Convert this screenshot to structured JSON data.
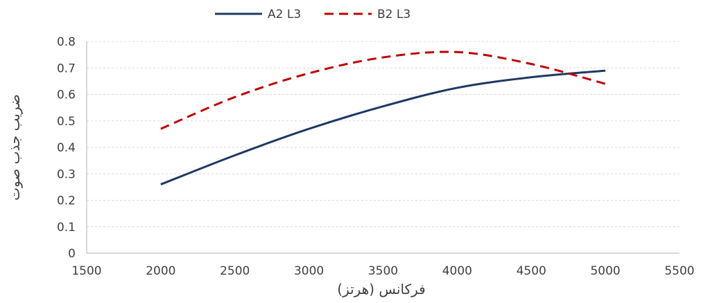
{
  "chart_data": {
    "type": "line",
    "title": "",
    "xlabel": "فرکانس (هرتز)",
    "ylabel": "ضریب جذب صوت",
    "xlim": [
      1500,
      5500
    ],
    "ylim": [
      0,
      0.8
    ],
    "xticks": [
      1500,
      2000,
      2500,
      3000,
      3500,
      4000,
      4500,
      5000,
      5500
    ],
    "yticks": [
      0,
      0.1,
      0.2,
      0.3,
      0.4,
      0.5,
      0.6,
      0.7,
      0.8
    ],
    "grid": true,
    "legend": "top",
    "series": [
      {
        "name": "A2 L3",
        "color": "#1f3864",
        "dash": "solid",
        "x": [
          2000,
          2500,
          3000,
          3500,
          4000,
          4500,
          5000
        ],
        "y": [
          0.26,
          0.37,
          0.47,
          0.555,
          0.625,
          0.665,
          0.69
        ]
      },
      {
        "name": "B2 L3",
        "color": "#c00000",
        "dash": "dashed",
        "x": [
          2000,
          2500,
          3000,
          3500,
          4000,
          4500,
          5000
        ],
        "y": [
          0.47,
          0.59,
          0.68,
          0.74,
          0.76,
          0.715,
          0.64
        ]
      }
    ]
  }
}
